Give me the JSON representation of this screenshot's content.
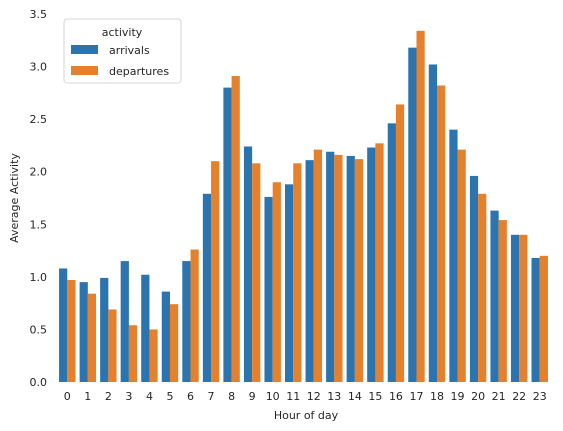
{
  "chart_data": {
    "type": "bar",
    "xlabel": "Hour of day",
    "ylabel": "Average Activity",
    "ylim": [
      0,
      3.5
    ],
    "yticks": [
      "0.0",
      "0.5",
      "1.0",
      "1.5",
      "2.0",
      "2.5",
      "3.0",
      "3.5"
    ],
    "categories": [
      "0",
      "1",
      "2",
      "3",
      "4",
      "5",
      "6",
      "7",
      "8",
      "9",
      "10",
      "11",
      "12",
      "13",
      "14",
      "15",
      "16",
      "17",
      "18",
      "19",
      "20",
      "21",
      "22",
      "23"
    ],
    "series": [
      {
        "name": "arrivals",
        "color": "#2b74ad",
        "values": [
          1.08,
          0.95,
          0.99,
          1.15,
          1.02,
          0.86,
          1.15,
          1.79,
          2.8,
          2.24,
          1.76,
          1.88,
          2.11,
          2.19,
          2.15,
          2.23,
          2.46,
          3.18,
          3.02,
          2.4,
          1.96,
          1.63,
          1.4,
          1.18
        ]
      },
      {
        "name": "departures",
        "color": "#e5812d",
        "values": [
          0.97,
          0.84,
          0.69,
          0.54,
          0.5,
          0.74,
          1.26,
          2.1,
          2.91,
          2.08,
          1.9,
          2.08,
          2.21,
          2.16,
          2.12,
          2.27,
          2.64,
          3.34,
          2.82,
          2.21,
          1.79,
          1.54,
          1.4,
          1.2
        ]
      }
    ],
    "legend": {
      "title": "activity",
      "placement": "upper-left"
    },
    "grid": false
  }
}
